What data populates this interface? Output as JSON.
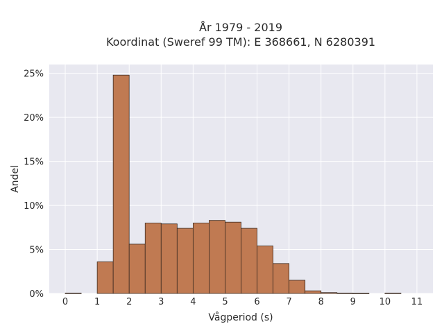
{
  "chart_data": {
    "type": "bar",
    "title_line1": "År 1979 - 2019",
    "title_line2": "Koordinat (Sweref 99 TM): E 368661, N 6280391",
    "xlabel": "Vågperiod (s)",
    "ylabel": "Andel",
    "bin_width": 0.5,
    "bins": [
      {
        "x": 0.0,
        "value": 0.05
      },
      {
        "x": 0.5,
        "value": 0.0
      },
      {
        "x": 1.0,
        "value": 3.6
      },
      {
        "x": 1.5,
        "value": 24.8
      },
      {
        "x": 2.0,
        "value": 5.6
      },
      {
        "x": 2.5,
        "value": 8.0
      },
      {
        "x": 3.0,
        "value": 7.9
      },
      {
        "x": 3.5,
        "value": 7.4
      },
      {
        "x": 4.0,
        "value": 8.0
      },
      {
        "x": 4.5,
        "value": 8.3
      },
      {
        "x": 5.0,
        "value": 8.1
      },
      {
        "x": 5.5,
        "value": 7.4
      },
      {
        "x": 6.0,
        "value": 5.4
      },
      {
        "x": 6.5,
        "value": 3.4
      },
      {
        "x": 7.0,
        "value": 1.5
      },
      {
        "x": 7.5,
        "value": 0.3
      },
      {
        "x": 8.0,
        "value": 0.1
      },
      {
        "x": 8.5,
        "value": 0.05
      },
      {
        "x": 9.0,
        "value": 0.04
      },
      {
        "x": 9.5,
        "value": 0.0
      },
      {
        "x": 10.0,
        "value": 0.05
      }
    ],
    "xlim": [
      -0.5,
      11.5
    ],
    "ylim": [
      0,
      26
    ],
    "x_ticks": [
      "0",
      "1",
      "2",
      "3",
      "4",
      "5",
      "6",
      "7",
      "8",
      "9",
      "10",
      "11"
    ],
    "y_ticks": [
      "0%",
      "5%",
      "10%",
      "15%",
      "20%",
      "25%"
    ],
    "bar_color": "#c07a52",
    "bar_edge_color": "#3a2a20",
    "plot_bg_color": "#e8e8f0",
    "grid": true
  }
}
